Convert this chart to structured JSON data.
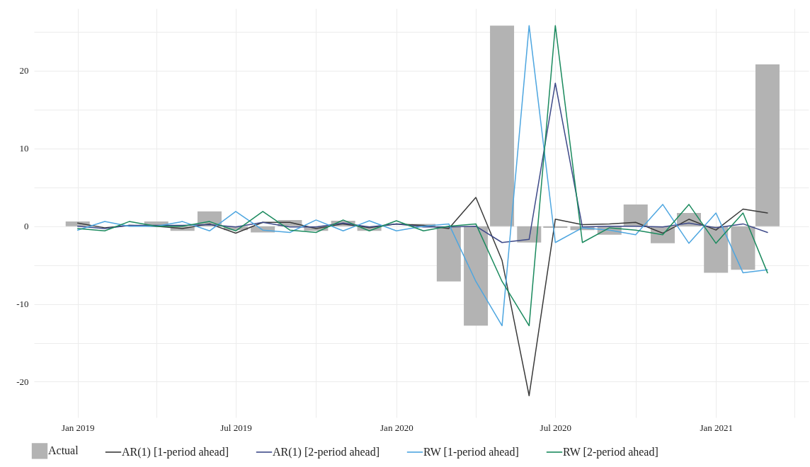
{
  "chart_data": {
    "type": "bar",
    "x": [
      "2019-01",
      "2019-02",
      "2019-03",
      "2019-04",
      "2019-05",
      "2019-06",
      "2019-07",
      "2019-08",
      "2019-09",
      "2019-10",
      "2019-11",
      "2019-12",
      "2020-01",
      "2020-02",
      "2020-03",
      "2020-04",
      "2020-05",
      "2020-06",
      "2020-07",
      "2020-08",
      "2020-09",
      "2020-10",
      "2020-11",
      "2020-12",
      "2021-01",
      "2021-02",
      "2021-03"
    ],
    "series": [
      {
        "name": "Actual",
        "color": "#b3b3b3",
        "values": [
          0.6,
          0,
          0,
          0.6,
          -0.6,
          1.9,
          -0.5,
          -0.8,
          0.8,
          -0.6,
          0.7,
          -0.6,
          0,
          0.3,
          -7.1,
          -12.8,
          25.8,
          -2.1,
          -0.2,
          -0.5,
          -1.1,
          2.8,
          -2.2,
          1.7,
          -6.0,
          -5.6,
          20.8
        ]
      },
      {
        "name": "AR(1) [1-period ahead]",
        "type": "line",
        "color": "#3a3a3a",
        "values": [
          0.4,
          -0.2,
          0.1,
          0,
          -0.3,
          0.3,
          -0.9,
          0.5,
          0.5,
          -0.3,
          0.3,
          -0.2,
          0.3,
          0.1,
          -0.3,
          3.7,
          -4.4,
          -21.8,
          0.9,
          0.2,
          0.3,
          0.5,
          -0.9,
          0.9,
          -0.5,
          2.2,
          1.7
        ]
      },
      {
        "name": "AR(1) [2-period ahead]",
        "type": "line",
        "color": "#3e4a89",
        "values": [
          0,
          -0.3,
          0.1,
          0.1,
          0.1,
          0.2,
          -0.1,
          0.5,
          -0.1,
          -0.1,
          0.4,
          -0.1,
          0.3,
          -0.1,
          -0.1,
          0,
          -2.1,
          -1.7,
          18.4,
          -0.1,
          0,
          0,
          -0.1,
          0.4,
          -0.2,
          0.3,
          -0.8
        ]
      },
      {
        "name": "RW [1-period ahead]",
        "type": "line",
        "color": "#4ea6e0",
        "values": [
          -0.5,
          0.6,
          0,
          0,
          0.6,
          -0.6,
          1.9,
          -0.5,
          -0.8,
          0.8,
          -0.6,
          0.7,
          -0.6,
          0,
          0.3,
          -7.1,
          -12.8,
          25.8,
          -2.1,
          -0.2,
          -0.5,
          -1.1,
          2.8,
          -2.2,
          1.7,
          -6.0,
          -5.6
        ]
      },
      {
        "name": "RW [2-period ahead]",
        "type": "line",
        "color": "#1b8a5e",
        "values": [
          -0.3,
          -0.6,
          0.6,
          0,
          0,
          0.6,
          -0.6,
          1.9,
          -0.5,
          -0.8,
          0.8,
          -0.6,
          0.7,
          -0.6,
          0,
          0.3,
          -7.1,
          -12.8,
          25.8,
          -2.1,
          -0.2,
          -0.5,
          -1.1,
          2.8,
          -2.2,
          1.7,
          -6.0
        ]
      }
    ],
    "xlim": [
      "2018-11-16",
      "2021-04-13"
    ],
    "xticks": [
      {
        "value": "2019-01",
        "label": "Jan 2019"
      },
      {
        "value": "2019-04",
        "label": null
      },
      {
        "value": "2019-07",
        "label": "Jul 2019"
      },
      {
        "value": "2019-10",
        "label": null
      },
      {
        "value": "2020-01",
        "label": "Jan 2020"
      },
      {
        "value": "2020-04",
        "label": null
      },
      {
        "value": "2020-07",
        "label": "Jul 2020"
      },
      {
        "value": "2020-10",
        "label": null
      },
      {
        "value": "2021-01",
        "label": "Jan 2021"
      },
      {
        "value": "2021-04",
        "label": null
      }
    ],
    "ylim": [
      -24.6,
      28
    ],
    "yticks": [
      -20,
      {
        "value": -15,
        "label": null
      },
      -10,
      {
        "value": -5,
        "label": null
      },
      0,
      {
        "value": 5,
        "label": null
      },
      10,
      {
        "value": 15,
        "label": null
      },
      20,
      {
        "value": 25,
        "label": null
      }
    ],
    "grid": true,
    "legend": "bottom"
  }
}
